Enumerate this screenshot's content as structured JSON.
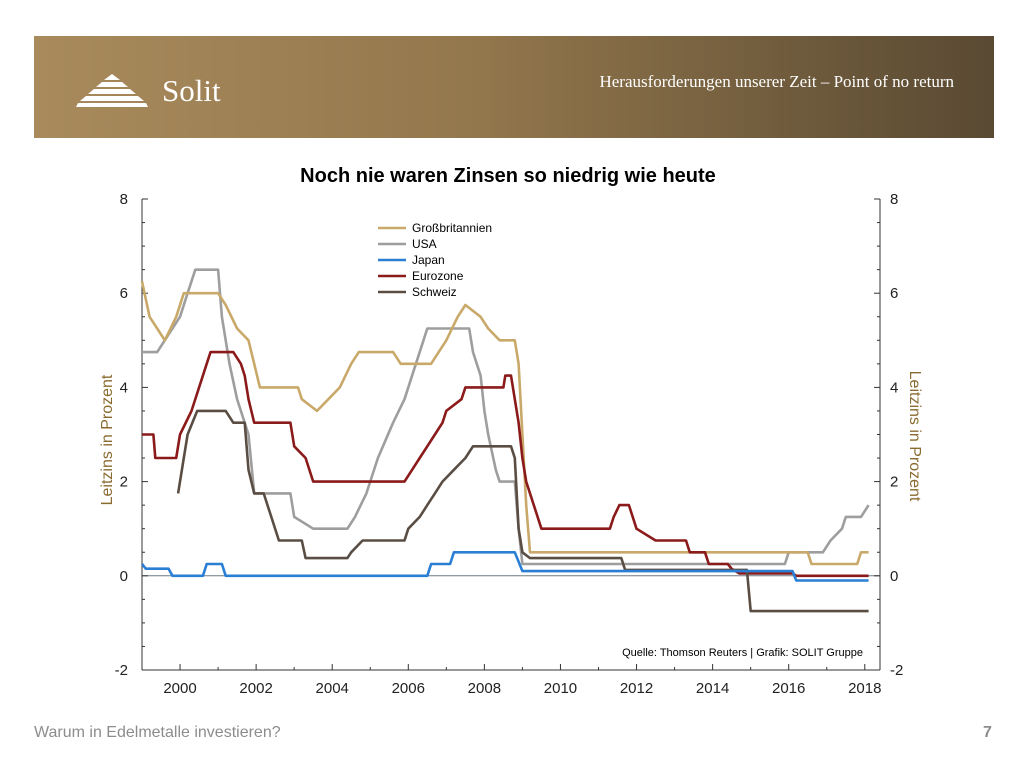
{
  "header": {
    "brand": "Solit",
    "slogan": "Herausforderungen unserer Zeit – Point of no return"
  },
  "footer": {
    "text": "Warum in Edelmetalle investieren?",
    "page": "7"
  },
  "chart_data": {
    "type": "line",
    "title": "Noch nie waren Zinsen so niedrig wie heute",
    "ylabel_left": "Leitzins in Prozent",
    "ylabel_right": "Leitzins in Prozent",
    "source": "Quelle: Thomson Reuters | Grafik: SOLIT Gruppe",
    "xlim": [
      1999.0,
      2018.4
    ],
    "ylim": [
      -2,
      8
    ],
    "xticks": [
      2000,
      2002,
      2004,
      2006,
      2008,
      2010,
      2012,
      2014,
      2016,
      2018
    ],
    "yticks": [
      -2,
      0,
      2,
      4,
      6,
      8
    ],
    "legend_position": "top-center",
    "series": [
      {
        "name": "Großbritannien",
        "color": "#c9a96a",
        "points": [
          [
            1999.0,
            6.25
          ],
          [
            1999.2,
            5.5
          ],
          [
            1999.4,
            5.25
          ],
          [
            1999.6,
            5.0
          ],
          [
            1999.9,
            5.5
          ],
          [
            2000.1,
            6.0
          ],
          [
            2001.0,
            6.0
          ],
          [
            2001.2,
            5.75
          ],
          [
            2001.5,
            5.25
          ],
          [
            2001.8,
            5.0
          ],
          [
            2001.95,
            4.5
          ],
          [
            2002.1,
            4.0
          ],
          [
            2003.1,
            4.0
          ],
          [
            2003.2,
            3.75
          ],
          [
            2003.6,
            3.5
          ],
          [
            2003.9,
            3.75
          ],
          [
            2004.2,
            4.0
          ],
          [
            2004.5,
            4.5
          ],
          [
            2004.7,
            4.75
          ],
          [
            2005.6,
            4.75
          ],
          [
            2005.8,
            4.5
          ],
          [
            2006.6,
            4.5
          ],
          [
            2006.8,
            4.75
          ],
          [
            2007.0,
            5.0
          ],
          [
            2007.3,
            5.5
          ],
          [
            2007.5,
            5.75
          ],
          [
            2007.9,
            5.5
          ],
          [
            2008.1,
            5.25
          ],
          [
            2008.4,
            5.0
          ],
          [
            2008.8,
            5.0
          ],
          [
            2008.9,
            4.5
          ],
          [
            2009.0,
            3.0
          ],
          [
            2009.1,
            1.5
          ],
          [
            2009.2,
            0.5
          ],
          [
            2016.5,
            0.5
          ],
          [
            2016.6,
            0.25
          ],
          [
            2017.8,
            0.25
          ],
          [
            2017.9,
            0.5
          ],
          [
            2018.1,
            0.5
          ]
        ]
      },
      {
        "name": "USA",
        "color": "#9e9e9e",
        "points": [
          [
            1999.0,
            4.75
          ],
          [
            1999.4,
            4.75
          ],
          [
            1999.6,
            5.0
          ],
          [
            1999.8,
            5.25
          ],
          [
            2000.0,
            5.5
          ],
          [
            2000.2,
            6.0
          ],
          [
            2000.4,
            6.5
          ],
          [
            2001.0,
            6.5
          ],
          [
            2001.1,
            5.5
          ],
          [
            2001.3,
            4.5
          ],
          [
            2001.5,
            3.75
          ],
          [
            2001.8,
            3.0
          ],
          [
            2001.95,
            1.75
          ],
          [
            2002.9,
            1.75
          ],
          [
            2003.0,
            1.25
          ],
          [
            2003.5,
            1.0
          ],
          [
            2004.4,
            1.0
          ],
          [
            2004.6,
            1.25
          ],
          [
            2004.9,
            1.75
          ],
          [
            2005.2,
            2.5
          ],
          [
            2005.6,
            3.25
          ],
          [
            2005.9,
            3.75
          ],
          [
            2006.2,
            4.5
          ],
          [
            2006.5,
            5.25
          ],
          [
            2007.6,
            5.25
          ],
          [
            2007.7,
            4.75
          ],
          [
            2007.9,
            4.25
          ],
          [
            2008.0,
            3.5
          ],
          [
            2008.1,
            3.0
          ],
          [
            2008.3,
            2.25
          ],
          [
            2008.4,
            2.0
          ],
          [
            2008.8,
            2.0
          ],
          [
            2008.9,
            1.0
          ],
          [
            2009.0,
            0.25
          ],
          [
            2015.9,
            0.25
          ],
          [
            2016.0,
            0.5
          ],
          [
            2016.9,
            0.5
          ],
          [
            2017.1,
            0.75
          ],
          [
            2017.4,
            1.0
          ],
          [
            2017.5,
            1.25
          ],
          [
            2017.9,
            1.25
          ],
          [
            2018.1,
            1.5
          ]
        ]
      },
      {
        "name": "Japan",
        "color": "#2a7fd4",
        "points": [
          [
            1999.0,
            0.25
          ],
          [
            1999.1,
            0.15
          ],
          [
            1999.7,
            0.15
          ],
          [
            1999.8,
            0.0
          ],
          [
            2000.6,
            0.0
          ],
          [
            2000.7,
            0.25
          ],
          [
            2001.1,
            0.25
          ],
          [
            2001.2,
            0.0
          ],
          [
            2006.5,
            0.0
          ],
          [
            2006.6,
            0.25
          ],
          [
            2007.1,
            0.25
          ],
          [
            2007.2,
            0.5
          ],
          [
            2008.8,
            0.5
          ],
          [
            2008.9,
            0.3
          ],
          [
            2009.0,
            0.1
          ],
          [
            2016.1,
            0.1
          ],
          [
            2016.2,
            -0.1
          ],
          [
            2018.1,
            -0.1
          ]
        ]
      },
      {
        "name": "Eurozone",
        "color": "#8b1a1a",
        "points": [
          [
            1999.0,
            3.0
          ],
          [
            1999.3,
            3.0
          ],
          [
            1999.35,
            2.5
          ],
          [
            1999.9,
            2.5
          ],
          [
            2000.0,
            3.0
          ],
          [
            2000.3,
            3.5
          ],
          [
            2000.5,
            4.0
          ],
          [
            2000.7,
            4.5
          ],
          [
            2000.8,
            4.75
          ],
          [
            2001.4,
            4.75
          ],
          [
            2001.6,
            4.5
          ],
          [
            2001.7,
            4.25
          ],
          [
            2001.8,
            3.75
          ],
          [
            2001.95,
            3.25
          ],
          [
            2002.9,
            3.25
          ],
          [
            2003.0,
            2.75
          ],
          [
            2003.3,
            2.5
          ],
          [
            2003.5,
            2.0
          ],
          [
            2005.9,
            2.0
          ],
          [
            2006.1,
            2.25
          ],
          [
            2006.3,
            2.5
          ],
          [
            2006.5,
            2.75
          ],
          [
            2006.7,
            3.0
          ],
          [
            2006.9,
            3.25
          ],
          [
            2007.0,
            3.5
          ],
          [
            2007.4,
            3.75
          ],
          [
            2007.5,
            4.0
          ],
          [
            2008.5,
            4.0
          ],
          [
            2008.55,
            4.25
          ],
          [
            2008.7,
            4.25
          ],
          [
            2008.8,
            3.75
          ],
          [
            2008.9,
            3.25
          ],
          [
            2009.0,
            2.5
          ],
          [
            2009.1,
            2.0
          ],
          [
            2009.3,
            1.5
          ],
          [
            2009.4,
            1.25
          ],
          [
            2009.5,
            1.0
          ],
          [
            2011.3,
            1.0
          ],
          [
            2011.4,
            1.25
          ],
          [
            2011.55,
            1.5
          ],
          [
            2011.8,
            1.5
          ],
          [
            2011.9,
            1.25
          ],
          [
            2012.0,
            1.0
          ],
          [
            2012.5,
            0.75
          ],
          [
            2013.3,
            0.75
          ],
          [
            2013.4,
            0.5
          ],
          [
            2013.8,
            0.5
          ],
          [
            2013.9,
            0.25
          ],
          [
            2014.4,
            0.25
          ],
          [
            2014.5,
            0.15
          ],
          [
            2014.7,
            0.05
          ],
          [
            2016.1,
            0.05
          ],
          [
            2016.2,
            0.0
          ],
          [
            2018.1,
            0.0
          ]
        ]
      },
      {
        "name": "Schweiz",
        "color": "#5a4e44",
        "points": [
          [
            1999.95,
            1.75
          ],
          [
            2000.1,
            2.5
          ],
          [
            2000.2,
            3.0
          ],
          [
            2000.45,
            3.5
          ],
          [
            2001.2,
            3.5
          ],
          [
            2001.4,
            3.25
          ],
          [
            2001.7,
            3.25
          ],
          [
            2001.8,
            2.25
          ],
          [
            2001.95,
            1.75
          ],
          [
            2002.2,
            1.75
          ],
          [
            2002.4,
            1.25
          ],
          [
            2002.6,
            0.75
          ],
          [
            2003.2,
            0.75
          ],
          [
            2003.3,
            0.375
          ],
          [
            2004.4,
            0.375
          ],
          [
            2004.5,
            0.5
          ],
          [
            2004.8,
            0.75
          ],
          [
            2005.9,
            0.75
          ],
          [
            2006.0,
            1.0
          ],
          [
            2006.3,
            1.25
          ],
          [
            2006.5,
            1.5
          ],
          [
            2006.7,
            1.75
          ],
          [
            2006.9,
            2.0
          ],
          [
            2007.2,
            2.25
          ],
          [
            2007.5,
            2.5
          ],
          [
            2007.7,
            2.75
          ],
          [
            2008.7,
            2.75
          ],
          [
            2008.8,
            2.5
          ],
          [
            2008.9,
            1.0
          ],
          [
            2009.0,
            0.5
          ],
          [
            2009.2,
            0.375
          ],
          [
            2011.6,
            0.375
          ],
          [
            2011.7,
            0.125
          ],
          [
            2014.9,
            0.125
          ],
          [
            2015.0,
            -0.75
          ],
          [
            2018.1,
            -0.75
          ]
        ]
      }
    ]
  }
}
